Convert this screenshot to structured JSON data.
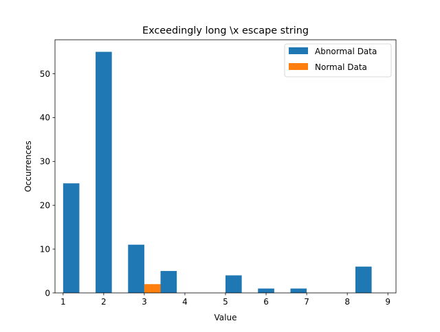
{
  "chart_data": {
    "type": "bar",
    "title": "Exceedingly long \\x escape string",
    "xlabel": "Value",
    "ylabel": "Occurrences",
    "xlim": [
      0.8,
      9.2
    ],
    "ylim": [
      0,
      57.75
    ],
    "xticks": [
      1,
      2,
      3,
      4,
      5,
      6,
      7,
      8,
      9
    ],
    "yticks": [
      0,
      10,
      20,
      30,
      40,
      50
    ],
    "grid": false,
    "legend": "top-right",
    "bin_edges": [
      1.0,
      1.8,
      2.6,
      3.4,
      4.2,
      5.0,
      5.8,
      6.6,
      7.4,
      8.2,
      9.0
    ],
    "series": [
      {
        "name": "Abnormal Data",
        "color": "#1f77b4",
        "values": [
          25,
          55,
          11,
          5,
          0,
          4,
          1,
          1,
          0,
          6
        ]
      },
      {
        "name": "Normal Data",
        "color": "#ff7f0e",
        "values": [
          0,
          0,
          2,
          0,
          0,
          0,
          0,
          0,
          0,
          0
        ]
      }
    ]
  }
}
